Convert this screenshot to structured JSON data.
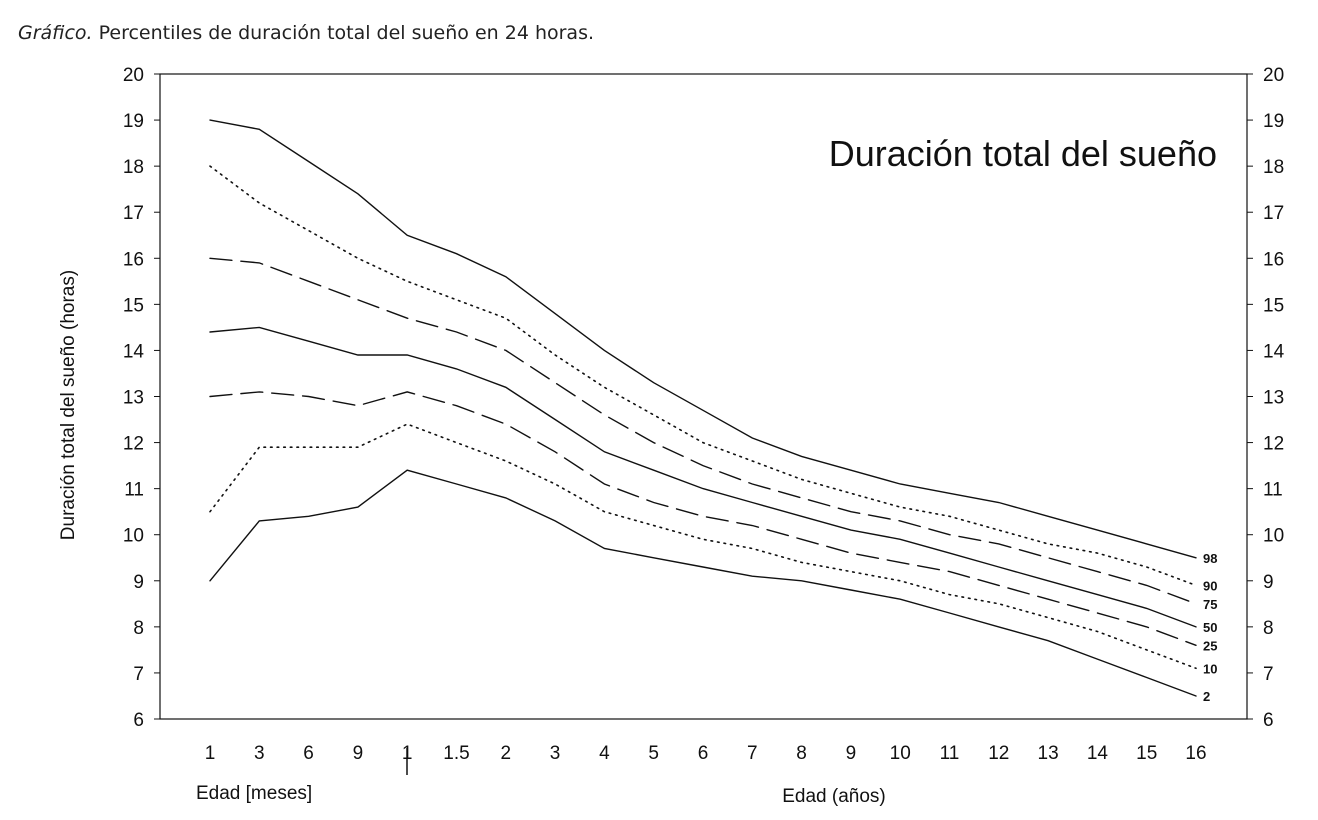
{
  "caption": {
    "lead": "Gráfico.",
    "text": "Percentiles de duración total del sueño en 24 horas."
  },
  "chart_data": {
    "type": "line",
    "title": "Duración total del sueño",
    "ylabel": "Duración total del sueño (horas)",
    "xlabel_months": "Edad [meses]",
    "xlabel_years": "Edad (años)",
    "ylim": [
      6,
      20
    ],
    "yticks": [
      6,
      7,
      8,
      9,
      10,
      11,
      12,
      13,
      14,
      15,
      16,
      17,
      18,
      19,
      20
    ],
    "x": [
      "1",
      "3",
      "6",
      "9",
      "1",
      "1.5",
      "2",
      "3",
      "4",
      "5",
      "6",
      "7",
      "8",
      "9",
      "10",
      "11",
      "12",
      "13",
      "14",
      "15",
      "16"
    ],
    "grid": false,
    "series": [
      {
        "name": "98",
        "style": "solid",
        "values": [
          19.0,
          18.8,
          18.1,
          17.4,
          16.5,
          16.1,
          15.6,
          14.8,
          14.0,
          13.3,
          12.7,
          12.1,
          11.7,
          11.4,
          11.1,
          10.9,
          10.7,
          10.4,
          10.1,
          9.8,
          9.5
        ]
      },
      {
        "name": "90",
        "style": "dotted",
        "values": [
          18.0,
          17.2,
          16.6,
          16.0,
          15.5,
          15.1,
          14.7,
          13.9,
          13.2,
          12.6,
          12.0,
          11.6,
          11.2,
          10.9,
          10.6,
          10.4,
          10.1,
          9.8,
          9.6,
          9.3,
          8.9
        ]
      },
      {
        "name": "75",
        "style": "dashed",
        "values": [
          16.0,
          15.9,
          15.5,
          15.1,
          14.7,
          14.4,
          14.0,
          13.3,
          12.6,
          12.0,
          11.5,
          11.1,
          10.8,
          10.5,
          10.3,
          10.0,
          9.8,
          9.5,
          9.2,
          8.9,
          8.5
        ]
      },
      {
        "name": "50",
        "style": "solid",
        "values": [
          14.4,
          14.5,
          14.2,
          13.9,
          13.9,
          13.6,
          13.2,
          12.5,
          11.8,
          11.4,
          11.0,
          10.7,
          10.4,
          10.1,
          9.9,
          9.6,
          9.3,
          9.0,
          8.7,
          8.4,
          8.0
        ]
      },
      {
        "name": "25",
        "style": "dashed",
        "values": [
          13.0,
          13.1,
          13.0,
          12.8,
          13.1,
          12.8,
          12.4,
          11.8,
          11.1,
          10.7,
          10.4,
          10.2,
          9.9,
          9.6,
          9.4,
          9.2,
          8.9,
          8.6,
          8.3,
          8.0,
          7.6
        ]
      },
      {
        "name": "10",
        "style": "dotted",
        "values": [
          10.5,
          11.9,
          11.9,
          11.9,
          12.4,
          12.0,
          11.6,
          11.1,
          10.5,
          10.2,
          9.9,
          9.7,
          9.4,
          9.2,
          9.0,
          8.7,
          8.5,
          8.2,
          7.9,
          7.5,
          7.1
        ]
      },
      {
        "name": "2",
        "style": "solid",
        "values": [
          9.0,
          10.3,
          10.4,
          10.6,
          11.4,
          11.1,
          10.8,
          10.3,
          9.7,
          9.5,
          9.3,
          9.1,
          9.0,
          8.8,
          8.6,
          8.3,
          8.0,
          7.7,
          7.3,
          6.9,
          6.5
        ]
      }
    ]
  }
}
